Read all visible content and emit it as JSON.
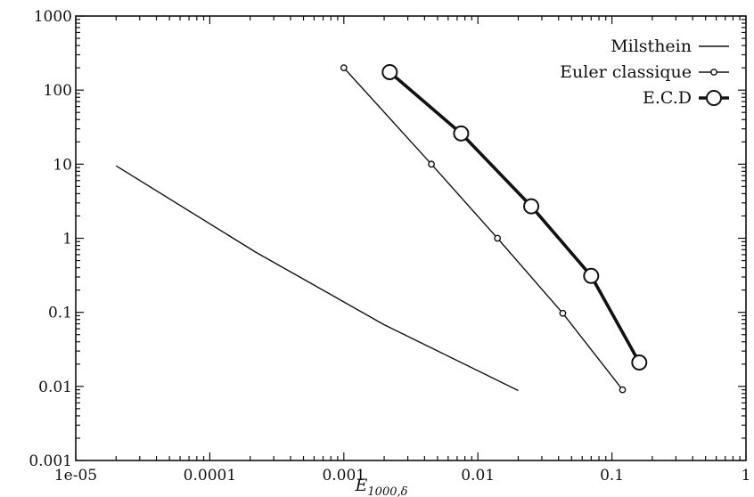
{
  "chart_data": {
    "type": "line",
    "x_scale": "log",
    "y_scale": "log",
    "xlim": [
      1e-05,
      1
    ],
    "ylim": [
      0.001,
      1000
    ],
    "x_ticks": [
      1e-05,
      0.0001,
      0.001,
      0.01,
      0.1,
      1
    ],
    "x_tick_labels": [
      "1e-05",
      "0.0001",
      "0.001",
      "0.01",
      "0.1",
      "1"
    ],
    "y_ticks": [
      0.001,
      0.01,
      0.1,
      1,
      10,
      100,
      1000
    ],
    "y_tick_labels": [
      "0.001",
      "0.01",
      "0.1",
      "1",
      "10",
      "100",
      "1000"
    ],
    "title": "",
    "xlabel": {
      "main": "E",
      "sub": "1000,δ"
    },
    "ylabel": "",
    "grid": false,
    "legend_position": "top-right",
    "series": [
      {
        "name": "Milsthein",
        "marker": "none",
        "line": "thin",
        "x": [
          2e-05,
          0.00022,
          0.002,
          0.02
        ],
        "y": [
          9.5,
          0.65,
          0.068,
          0.0088
        ]
      },
      {
        "name": "Euler classique",
        "marker": "small-circle",
        "line": "thin",
        "x": [
          0.001,
          0.0045,
          0.014,
          0.043,
          0.12
        ],
        "y": [
          200,
          10,
          1,
          0.097,
          0.009
        ]
      },
      {
        "name": "E.C.D",
        "marker": "large-circle",
        "line": "thick",
        "x": [
          0.0022,
          0.0075,
          0.025,
          0.07,
          0.16
        ],
        "y": [
          175,
          26,
          2.7,
          0.31,
          0.021
        ]
      }
    ]
  }
}
